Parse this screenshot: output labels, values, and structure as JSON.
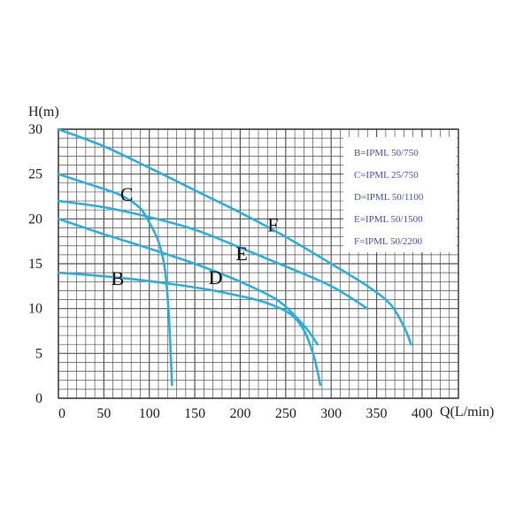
{
  "chart_data": {
    "type": "line",
    "title": "",
    "xlabel": "Q(L/min)",
    "ylabel": "H(m)",
    "xlim": [
      0,
      440
    ],
    "ylim": [
      0,
      30
    ],
    "x_ticks": [
      0,
      50,
      100,
      150,
      200,
      250,
      300,
      350,
      400
    ],
    "y_ticks": [
      0,
      5,
      10,
      15,
      20,
      25,
      30
    ],
    "grid": true,
    "legend_position": "top-right",
    "line_color": "#2ab0dc",
    "legend_text_color": "#4a4ad0",
    "grid_color": "#555555",
    "series": [
      {
        "name": "B",
        "legend": "B=IPML 50/750",
        "points": [
          [
            0,
            14
          ],
          [
            40,
            13.7
          ],
          [
            80,
            13.3
          ],
          [
            120,
            12.8
          ],
          [
            160,
            12.2
          ],
          [
            200,
            11.4
          ],
          [
            230,
            10.6
          ],
          [
            255,
            9.4
          ],
          [
            270,
            7.6
          ],
          [
            280,
            5
          ],
          [
            285,
            3
          ],
          [
            288,
            1.5
          ]
        ]
      },
      {
        "name": "C",
        "legend": "C=IPML 25/750",
        "points": [
          [
            0,
            25
          ],
          [
            30,
            24
          ],
          [
            60,
            23
          ],
          [
            75,
            22.3
          ],
          [
            90,
            21.2
          ],
          [
            100,
            19.6
          ],
          [
            110,
            17.5
          ],
          [
            117,
            14.5
          ],
          [
            121,
            10
          ],
          [
            123,
            6
          ],
          [
            125,
            1.5
          ]
        ]
      },
      {
        "name": "D",
        "legend": "D=IPML 50/1100",
        "points": [
          [
            0,
            20
          ],
          [
            50,
            18.3
          ],
          [
            100,
            16.7
          ],
          [
            150,
            15
          ],
          [
            200,
            13
          ],
          [
            240,
            11
          ],
          [
            262,
            9
          ],
          [
            275,
            7.5
          ],
          [
            285,
            6
          ]
        ]
      },
      {
        "name": "E",
        "legend": "E=IPML 50/1500",
        "points": [
          [
            0,
            22
          ],
          [
            50,
            21.3
          ],
          [
            100,
            20.2
          ],
          [
            150,
            18.8
          ],
          [
            200,
            16.8
          ],
          [
            250,
            14.7
          ],
          [
            300,
            12.5
          ],
          [
            340,
            10
          ]
        ]
      },
      {
        "name": "F",
        "legend": "F=IPML 50/2200",
        "points": [
          [
            0,
            30
          ],
          [
            50,
            28.1
          ],
          [
            100,
            25.7
          ],
          [
            150,
            23.2
          ],
          [
            200,
            20.7
          ],
          [
            250,
            18
          ],
          [
            300,
            15
          ],
          [
            340,
            12.5
          ],
          [
            365,
            10.5
          ],
          [
            380,
            8
          ],
          [
            388,
            6
          ]
        ]
      }
    ],
    "curve_labels": [
      {
        "text": "B",
        "x": 58,
        "y": 13.4
      },
      {
        "text": "C",
        "x": 68,
        "y": 22.8
      },
      {
        "text": "D",
        "x": 165,
        "y": 13.5
      },
      {
        "text": "E",
        "x": 195,
        "y": 16.2
      },
      {
        "text": "F",
        "x": 230,
        "y": 19.4
      }
    ]
  }
}
